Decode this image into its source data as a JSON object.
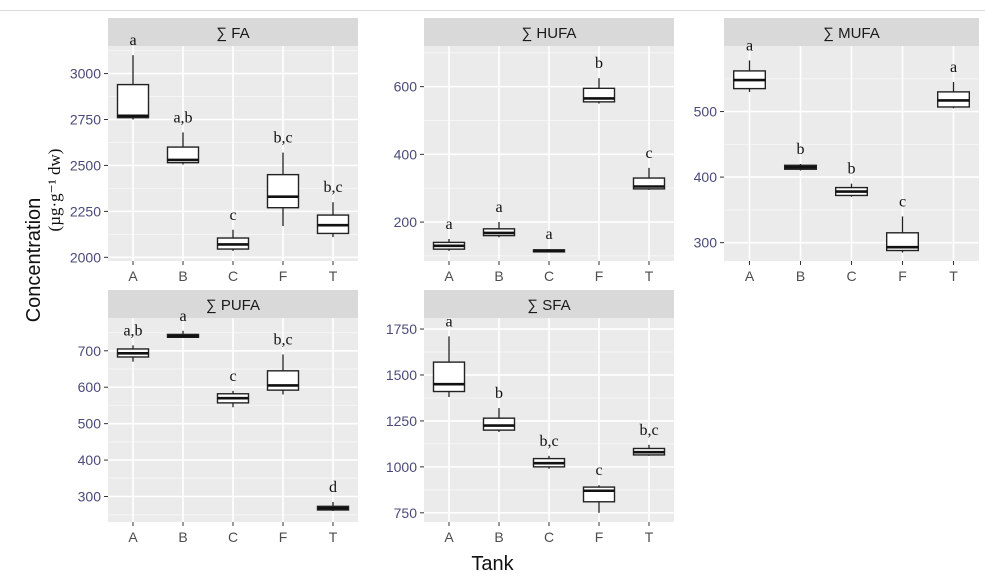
{
  "figure": {
    "xlabel": "Tank",
    "ylabel": "Concentration",
    "yunit": "(µg·g⁻¹ dw)"
  },
  "chart_data": [
    {
      "type": "boxplot",
      "title": "∑ FA",
      "categories": [
        "A",
        "B",
        "C",
        "F",
        "T"
      ],
      "ylim": [
        1980,
        3150
      ],
      "yticks": [
        2000,
        2250,
        2500,
        2750,
        3000
      ],
      "boxes": [
        {
          "min": 2750,
          "q1": 2760,
          "median": 2770,
          "q3": 2940,
          "max": 3100
        },
        {
          "min": 2505,
          "q1": 2515,
          "median": 2530,
          "q3": 2600,
          "max": 2680
        },
        {
          "min": 2035,
          "q1": 2045,
          "median": 2070,
          "q3": 2105,
          "max": 2150
        },
        {
          "min": 2170,
          "q1": 2270,
          "median": 2330,
          "q3": 2450,
          "max": 2570
        },
        {
          "min": 2110,
          "q1": 2130,
          "median": 2175,
          "q3": 2230,
          "max": 2300
        }
      ],
      "letters": [
        "a",
        "a,b",
        "c",
        "b,c",
        "b,c"
      ]
    },
    {
      "type": "boxplot",
      "title": "∑ HUFA",
      "categories": [
        "A",
        "B",
        "C",
        "F",
        "T"
      ],
      "ylim": [
        85,
        720
      ],
      "yticks": [
        200,
        400,
        600
      ],
      "boxes": [
        {
          "min": 115,
          "q1": 120,
          "median": 130,
          "q3": 140,
          "max": 150
        },
        {
          "min": 155,
          "q1": 160,
          "median": 168,
          "q3": 180,
          "max": 200
        },
        {
          "min": 110,
          "q1": 112,
          "median": 115,
          "q3": 118,
          "max": 120
        },
        {
          "min": 550,
          "q1": 555,
          "median": 565,
          "q3": 595,
          "max": 625
        },
        {
          "min": 295,
          "q1": 298,
          "median": 305,
          "q3": 330,
          "max": 360
        }
      ],
      "letters": [
        "a",
        "a",
        "a",
        "b",
        "c"
      ]
    },
    {
      "type": "boxplot",
      "title": "∑ MUFA",
      "categories": [
        "A",
        "B",
        "C",
        "F",
        "T"
      ],
      "ylim": [
        272,
        600
      ],
      "yticks": [
        300,
        400,
        500
      ],
      "boxes": [
        {
          "min": 530,
          "q1": 535,
          "median": 548,
          "q3": 562,
          "max": 578
        },
        {
          "min": 410,
          "q1": 412,
          "median": 415,
          "q3": 418,
          "max": 420
        },
        {
          "min": 370,
          "q1": 372,
          "median": 378,
          "q3": 384,
          "max": 390
        },
        {
          "min": 285,
          "q1": 288,
          "median": 293,
          "q3": 315,
          "max": 340
        },
        {
          "min": 505,
          "q1": 507,
          "median": 517,
          "q3": 530,
          "max": 545
        }
      ],
      "letters": [
        "a",
        "b",
        "b",
        "c",
        "a"
      ]
    },
    {
      "type": "boxplot",
      "title": "∑ PUFA",
      "categories": [
        "A",
        "B",
        "C",
        "F",
        "T"
      ],
      "ylim": [
        230,
        790
      ],
      "yticks": [
        300,
        400,
        500,
        600,
        700
      ],
      "boxes": [
        {
          "min": 670,
          "q1": 683,
          "median": 693,
          "q3": 705,
          "max": 715
        },
        {
          "min": 735,
          "q1": 737,
          "median": 740,
          "q3": 745,
          "max": 755
        },
        {
          "min": 545,
          "q1": 557,
          "median": 570,
          "q3": 582,
          "max": 590
        },
        {
          "min": 580,
          "q1": 592,
          "median": 605,
          "q3": 645,
          "max": 690
        },
        {
          "min": 260,
          "q1": 263,
          "median": 268,
          "q3": 273,
          "max": 285
        }
      ],
      "letters": [
        "a,b",
        "a",
        "c",
        "b,c",
        "d"
      ]
    },
    {
      "type": "boxplot",
      "title": "∑ SFA",
      "categories": [
        "A",
        "B",
        "C",
        "F",
        "T"
      ],
      "ylim": [
        700,
        1810
      ],
      "yticks": [
        750,
        1000,
        1250,
        1500,
        1750
      ],
      "boxes": [
        {
          "min": 1380,
          "q1": 1410,
          "median": 1450,
          "q3": 1570,
          "max": 1710
        },
        {
          "min": 1190,
          "q1": 1200,
          "median": 1225,
          "q3": 1265,
          "max": 1320
        },
        {
          "min": 990,
          "q1": 1000,
          "median": 1020,
          "q3": 1045,
          "max": 1060
        },
        {
          "min": 750,
          "q1": 810,
          "median": 870,
          "q3": 890,
          "max": 900
        },
        {
          "min": 1060,
          "q1": 1065,
          "median": 1080,
          "q3": 1100,
          "max": 1120
        }
      ],
      "letters": [
        "a",
        "b",
        "b,c",
        "c",
        "b,c"
      ]
    }
  ]
}
